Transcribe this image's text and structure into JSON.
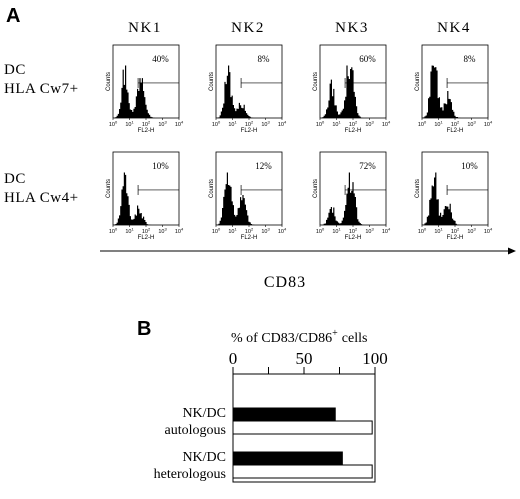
{
  "panel_a": {
    "letter": "A",
    "columns": [
      "NK1",
      "NK2",
      "NK3",
      "NK4"
    ],
    "rows": [
      {
        "label_line1": "DC",
        "label_line2": "HLA Cw7+"
      },
      {
        "label_line1": "DC",
        "label_line2": "HLA Cw4+"
      }
    ],
    "x_axis_label": "CD83",
    "histogram_y_label": "Counts",
    "histogram_x_label": "FL2-H",
    "histogram_ticks": [
      "10",
      "10",
      "10",
      "10",
      "10"
    ],
    "histogram_tick_exponents": [
      "0",
      "1",
      "2",
      "3",
      "4"
    ]
  },
  "panel_b": {
    "letter": "B",
    "header": "% of  CD83/CD86",
    "header_sup": "+",
    "header_suffix": "cells"
  },
  "chart_data": [
    {
      "type": "histogram",
      "title": "",
      "xlabel": "FL2-H",
      "ylabel": "Counts",
      "x_scale": "log",
      "xlim": [
        1,
        10000
      ],
      "columns": [
        "NK1",
        "NK2",
        "NK3",
        "NK4"
      ],
      "rows": [
        "DC HLA Cw7+",
        "DC HLA Cw4+"
      ],
      "percent_positive": [
        [
          "40%",
          "8%",
          "60%",
          "8%"
        ],
        [
          "10%",
          "12%",
          "72%",
          "10%"
        ]
      ]
    },
    {
      "type": "bar",
      "orientation": "horizontal",
      "title": "% of CD83/CD86 + cells",
      "groups": [
        {
          "label_line1": "NK/DC",
          "label_line2": "autologous"
        },
        {
          "label_line1": "NK/DC",
          "label_line2": "heterologous"
        }
      ],
      "series": [
        {
          "fill": "#000000",
          "values": [
            72,
            77
          ]
        },
        {
          "fill": "#ffffff",
          "values": [
            98,
            98
          ]
        }
      ],
      "xlim": [
        0,
        100
      ],
      "x_ticks": [
        "0",
        "50",
        "100"
      ]
    }
  ]
}
